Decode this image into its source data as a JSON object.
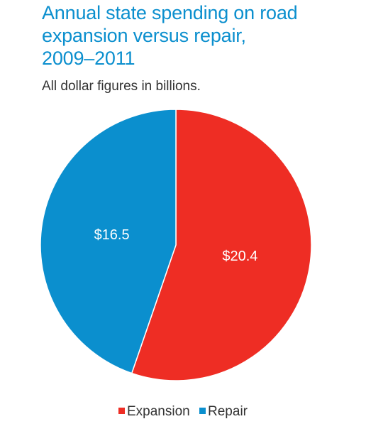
{
  "chart_data": {
    "type": "pie",
    "title_lines": [
      "Annual state spending on road",
      "expansion versus repair,",
      "2009–2011"
    ],
    "subtitle": "All dollar figures in billions.",
    "slices": [
      {
        "name": "Expansion",
        "value": 20.4,
        "label": "$20.4",
        "color": "#ee2d24"
      },
      {
        "name": "Repair",
        "value": 16.5,
        "label": "$16.5",
        "color": "#0b8fce"
      }
    ],
    "legend_position": "bottom",
    "title_color": "#0b8fce"
  }
}
